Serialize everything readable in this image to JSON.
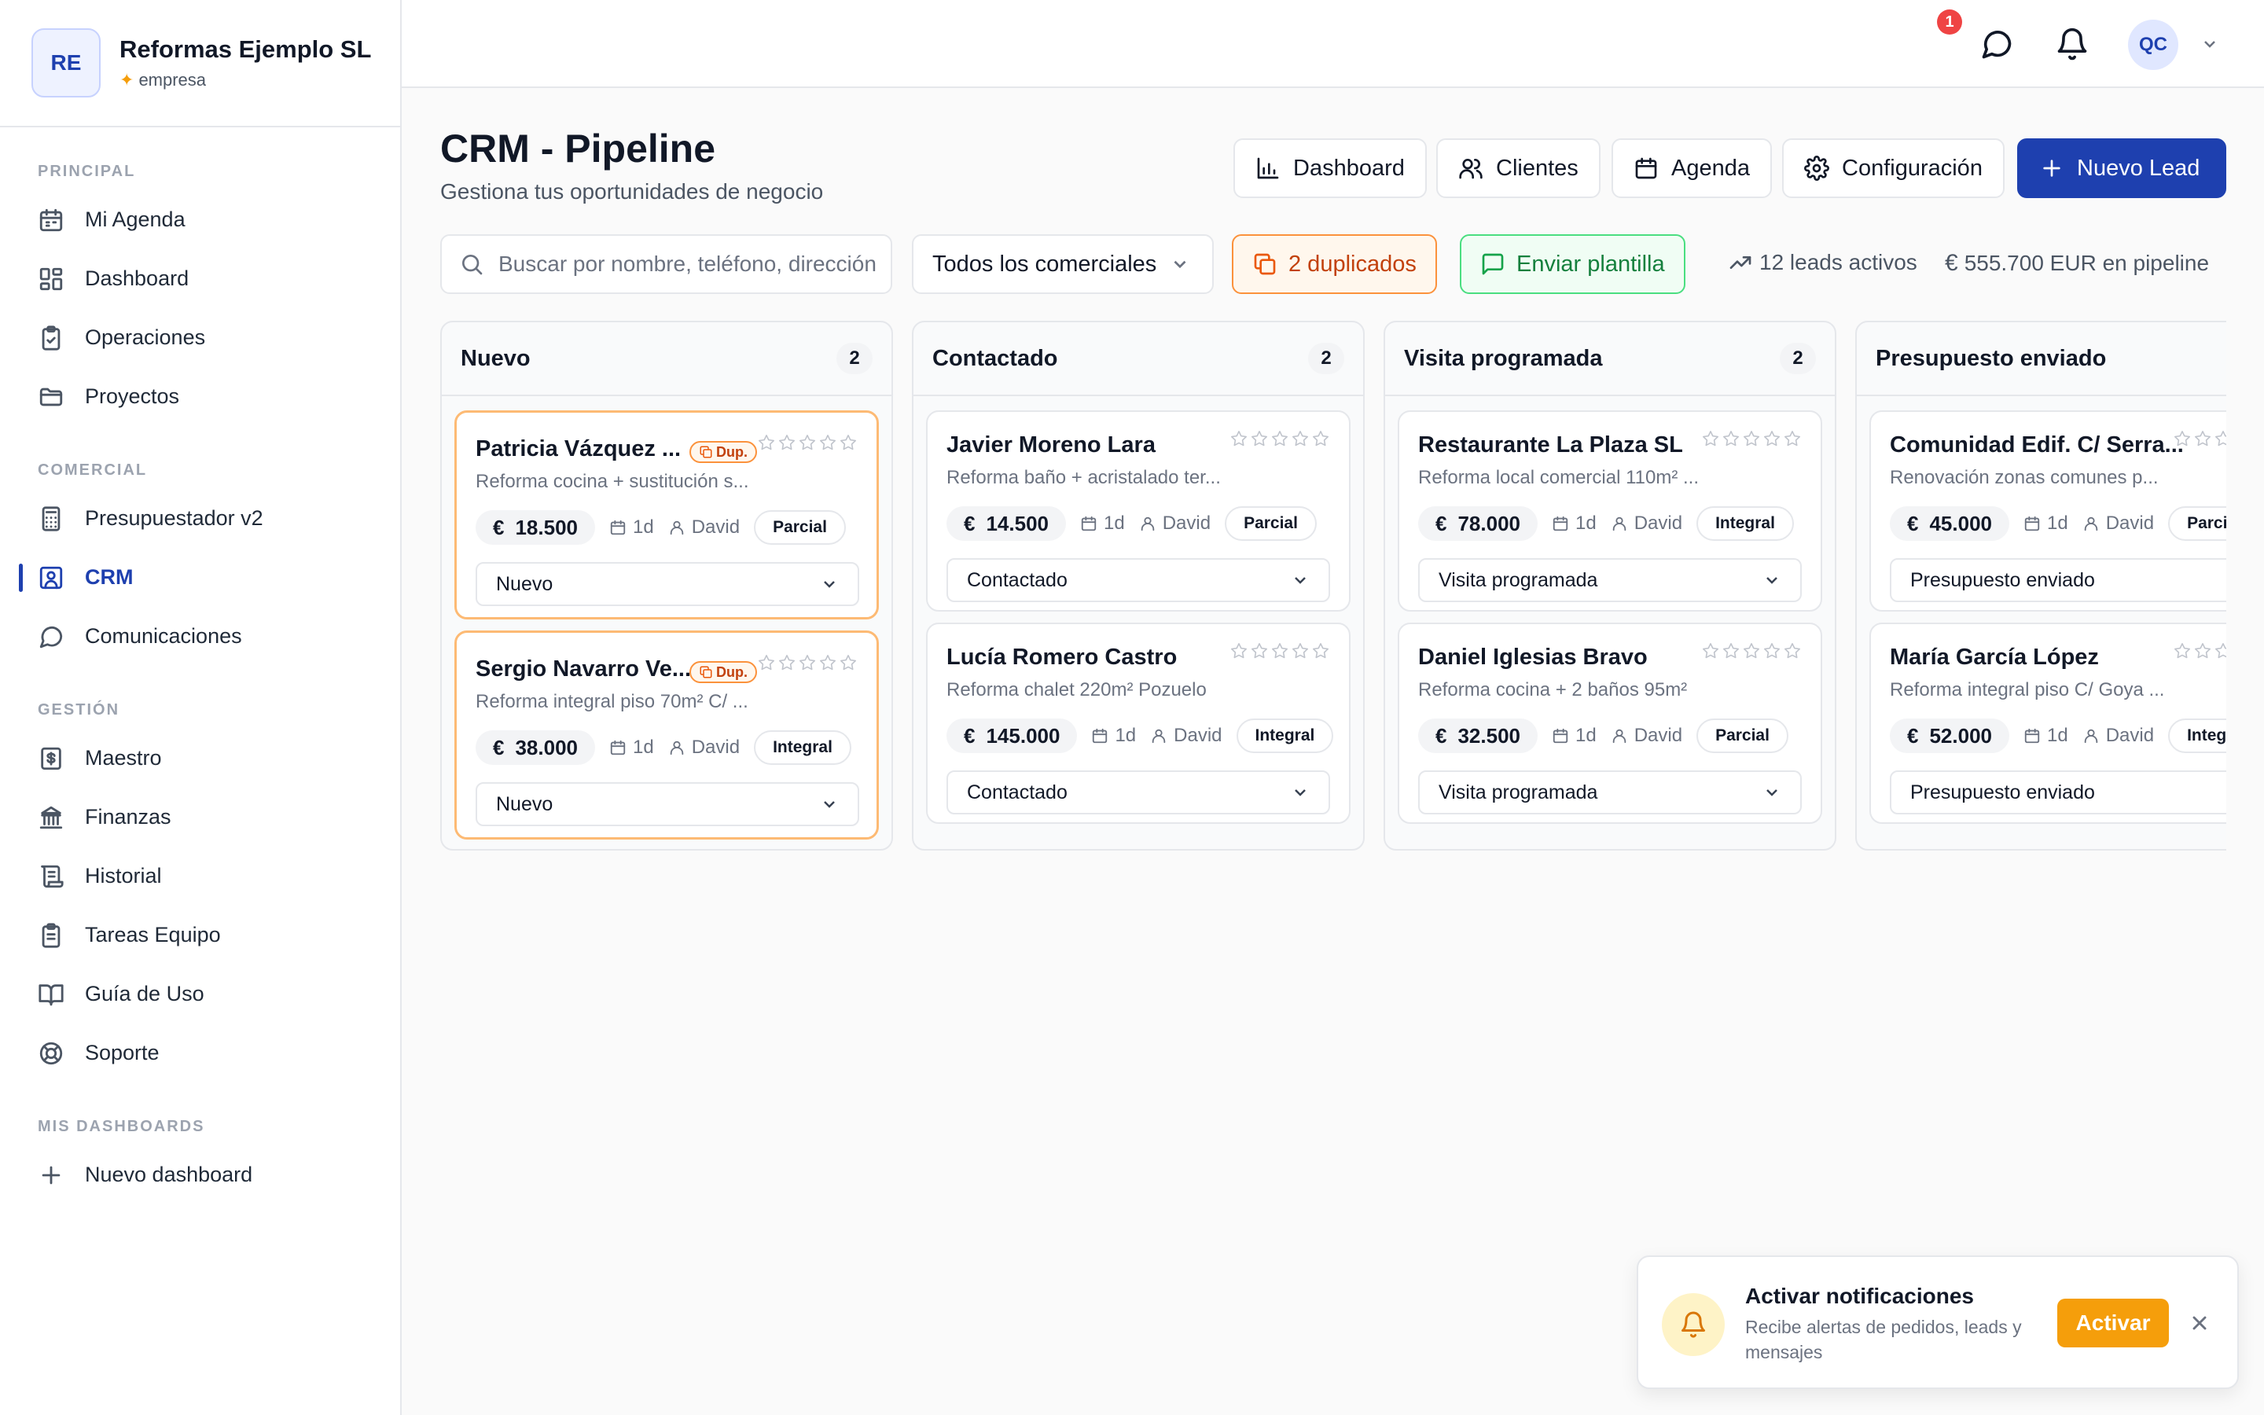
{
  "brand": {
    "initials": "RE",
    "name": "Reformas Ejemplo SL",
    "plan": "empresa"
  },
  "sidebar": {
    "sections": [
      {
        "heading": "PRINCIPAL",
        "items": [
          {
            "label": "Mi Agenda",
            "icon": "calendar-icon"
          },
          {
            "label": "Dashboard",
            "icon": "grid-icon"
          },
          {
            "label": "Operaciones",
            "icon": "clipboard-icon"
          },
          {
            "label": "Proyectos",
            "icon": "folder-icon"
          }
        ]
      },
      {
        "heading": "COMERCIAL",
        "items": [
          {
            "label": "Presupuestador v2",
            "icon": "calculator-icon"
          },
          {
            "label": "CRM",
            "icon": "contact-icon",
            "active": true
          },
          {
            "label": "Comunicaciones",
            "icon": "chat-icon"
          }
        ]
      },
      {
        "heading": "GESTIÓN",
        "items": [
          {
            "label": "Maestro",
            "icon": "dollar-doc-icon"
          },
          {
            "label": "Finanzas",
            "icon": "bank-icon"
          },
          {
            "label": "Historial",
            "icon": "scroll-icon"
          },
          {
            "label": "Tareas Equipo",
            "icon": "clipboard-list-icon"
          },
          {
            "label": "Guía de Uso",
            "icon": "book-icon"
          },
          {
            "label": "Soporte",
            "icon": "lifebuoy-icon"
          }
        ]
      },
      {
        "heading": "MIS DASHBOARDS",
        "items": [
          {
            "label": "Nuevo dashboard",
            "icon": "plus-icon"
          }
        ]
      }
    ]
  },
  "topbar": {
    "notification_count": "1",
    "user_initials": "QC"
  },
  "header": {
    "title": "CRM - Pipeline",
    "subtitle": "Gestiona tus oportunidades de negocio",
    "buttons": {
      "dashboard": "Dashboard",
      "clientes": "Clientes",
      "agenda": "Agenda",
      "configuracion": "Configuración",
      "nuevo_lead": "Nuevo Lead"
    }
  },
  "filters": {
    "search_placeholder": "Buscar por nombre, teléfono, dirección...",
    "comercial_selected": "Todos los comerciales",
    "duplicates_label": "2 duplicados",
    "template_label": "Enviar plantilla",
    "active_leads": "12 leads activos",
    "pipeline_total": "555.700 EUR en pipeline"
  },
  "colors": {
    "primary": "#1e40af",
    "duplicate": "#f97316",
    "template": "#16a34a",
    "activate": "#f59e0b",
    "badge": "#ef4444"
  },
  "columns": [
    {
      "title": "Nuevo",
      "count": "2",
      "cards": [
        {
          "name": "Patricia Vázquez ...",
          "dup": "Dup.",
          "desc": "Reforma cocina + sustitución s...",
          "price": "18.500",
          "currency": "€",
          "days": "1d",
          "owner": "David",
          "scope": "Parcial",
          "status": "Nuevo",
          "stars": 0
        },
        {
          "name": "Sergio Navarro Ve...",
          "dup": "Dup.",
          "desc": "Reforma integral piso 70m² C/ ...",
          "price": "38.000",
          "currency": "€",
          "days": "1d",
          "owner": "David",
          "scope": "Integral",
          "status": "Nuevo",
          "stars": 0
        }
      ]
    },
    {
      "title": "Contactado",
      "count": "2",
      "cards": [
        {
          "name": "Javier Moreno Lara",
          "desc": "Reforma baño + acristalado ter...",
          "price": "14.500",
          "currency": "€",
          "days": "1d",
          "owner": "David",
          "scope": "Parcial",
          "status": "Contactado",
          "stars": 0
        },
        {
          "name": "Lucía Romero Castro",
          "desc": "Reforma chalet 220m² Pozuelo",
          "price": "145.000",
          "currency": "€",
          "days": "1d",
          "owner": "David",
          "scope": "Integral",
          "status": "Contactado",
          "stars": 0
        }
      ]
    },
    {
      "title": "Visita programada",
      "count": "2",
      "cards": [
        {
          "name": "Restaurante La Plaza SL",
          "desc": "Reforma local comercial 110m² ...",
          "price": "78.000",
          "currency": "€",
          "days": "1d",
          "owner": "David",
          "scope": "Integral",
          "status": "Visita programada",
          "stars": 0
        },
        {
          "name": "Daniel Iglesias Bravo",
          "desc": "Reforma cocina + 2 baños 95m²",
          "price": "32.500",
          "currency": "€",
          "days": "1d",
          "owner": "David",
          "scope": "Parcial",
          "status": "Visita programada",
          "stars": 0
        }
      ]
    },
    {
      "title": "Presupuesto enviado",
      "count": "",
      "cards": [
        {
          "name": "Comunidad Edif. C/ Serra...",
          "desc": "Renovación zonas comunes p...",
          "price": "45.000",
          "currency": "€",
          "days": "1d",
          "owner": "David",
          "scope": "Parci",
          "status": "Presupuesto enviado",
          "stars": 0
        },
        {
          "name": "María García López",
          "desc": "Reforma integral piso C/ Goya ...",
          "price": "52.000",
          "currency": "€",
          "days": "1d",
          "owner": "David",
          "scope": "Integ",
          "status": "Presupuesto enviado",
          "stars": 0
        }
      ]
    }
  ],
  "toast": {
    "title": "Activar notificaciones",
    "body": "Recibe alertas de pedidos, leads y mensajes",
    "action": "Activar"
  }
}
